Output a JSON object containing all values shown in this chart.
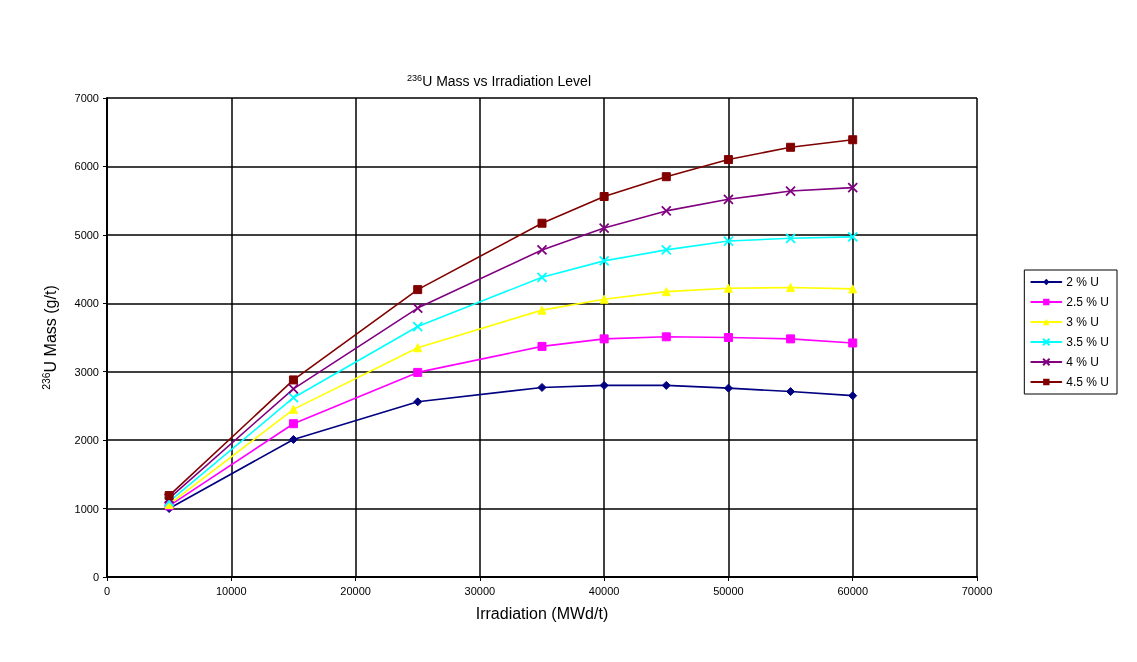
{
  "chart_data": {
    "type": "line",
    "title": "$^{236}$U Mass vs Irradiation Level",
    "xlabel": "Irradiation (MWd/t)",
    "ylabel": "$^{236}$U Mass (g/t)",
    "x": [
      5000,
      15000,
      25000,
      35000,
      40000,
      45000,
      50000,
      55000,
      60000
    ],
    "series": [
      {
        "name": "2 % U",
        "color": "#000080",
        "marker": "diamond",
        "values": [
          1000,
          2010,
          2560,
          2770,
          2800,
          2800,
          2760,
          2710,
          2650
        ]
      },
      {
        "name": "2.5 % U",
        "color": "#ff00ff",
        "marker": "square",
        "values": [
          1040,
          2240,
          2990,
          3370,
          3480,
          3510,
          3500,
          3480,
          3420
        ]
      },
      {
        "name": "3 % U",
        "color": "#ffff00",
        "marker": "triangle",
        "values": [
          1060,
          2450,
          3350,
          3900,
          4060,
          4170,
          4220,
          4230,
          4210
        ]
      },
      {
        "name": "3.5 % U",
        "color": "#00ffff",
        "marker": "cross",
        "values": [
          1100,
          2620,
          3660,
          4380,
          4620,
          4780,
          4910,
          4950,
          4970
        ]
      },
      {
        "name": "4 % U",
        "color": "#800080",
        "marker": "cross",
        "values": [
          1150,
          2750,
          3930,
          4780,
          5100,
          5350,
          5520,
          5640,
          5690
        ]
      },
      {
        "name": "4.5 % U",
        "color": "#800000",
        "marker": "square",
        "values": [
          1190,
          2880,
          4200,
          5170,
          5560,
          5850,
          6100,
          6280,
          6390
        ]
      }
    ],
    "xlim": [
      0,
      70000
    ],
    "xticks": [
      0,
      10000,
      20000,
      30000,
      40000,
      50000,
      60000,
      70000
    ],
    "ylim": [
      0,
      7000
    ],
    "yticks": [
      0,
      1000,
      2000,
      3000,
      4000,
      5000,
      6000,
      7000
    ],
    "grid": true,
    "legend": "right",
    "line_style": "solid"
  }
}
